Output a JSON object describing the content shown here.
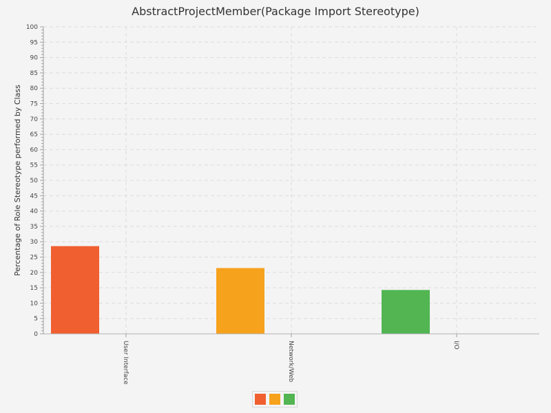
{
  "chart_data": {
    "type": "bar",
    "title": "AbstractProjectMember(Package Import Stereotype)",
    "xlabel": "",
    "ylabel": "Percentage of Role Stereotype performed by Class",
    "categories": [
      "User Interface",
      "Network/Web",
      "I/O"
    ],
    "series": [
      {
        "values": [
          28.57,
          21.43,
          14.29
        ]
      }
    ],
    "bar_colors": [
      "#f05f2f",
      "#f6a21c",
      "#52b552"
    ],
    "ylim": [
      0,
      100
    ],
    "y_major_step": 5,
    "y_minor_step": 1,
    "grid": true,
    "legend": "bottom-center"
  }
}
